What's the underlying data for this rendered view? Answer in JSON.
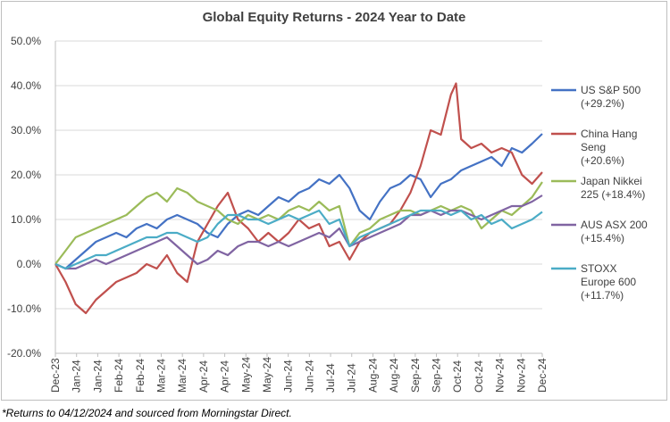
{
  "chart_data": {
    "type": "line",
    "title": "Global Equity Returns - 2024 Year to Date",
    "xlabel": "",
    "ylabel": "",
    "ylim": [
      -0.2,
      0.5
    ],
    "yticks": [
      "-20.0%",
      "-10.0%",
      "0.0%",
      "10.0%",
      "20.0%",
      "30.0%",
      "40.0%",
      "50.0%"
    ],
    "xticks": [
      "Dec-23",
      "Jan-24",
      "Jan-24",
      "Feb-24",
      "Feb-24",
      "Mar-24",
      "Mar-24",
      "Apr-24",
      "Apr-24",
      "May-24",
      "May-24",
      "Jun-24",
      "Jun-24",
      "Jul-24",
      "Jul-24",
      "Aug-24",
      "Aug-24",
      "Sep-24",
      "Sep-24",
      "Oct-24",
      "Oct-24",
      "Nov-24",
      "Nov-24",
      "Dec-24"
    ],
    "x_range": [
      0,
      48
    ],
    "grid": true,
    "legend_position": "right",
    "series": [
      {
        "name": "US S&P 500",
        "legend_lines": [
          "US S&P 500",
          "(+29.2%)"
        ],
        "color": "#4472c4",
        "x": [
          0,
          1,
          2,
          3,
          4,
          5,
          6,
          7,
          8,
          9,
          10,
          11,
          12,
          13,
          14,
          15,
          16,
          17,
          18,
          19,
          20,
          21,
          22,
          23,
          24,
          25,
          26,
          27,
          28,
          29,
          30,
          31,
          32,
          33,
          34,
          35,
          36,
          37,
          38,
          39,
          40,
          41,
          42,
          43,
          44,
          45,
          46,
          47,
          48
        ],
        "values": [
          0.0,
          -0.01,
          0.01,
          0.03,
          0.05,
          0.06,
          0.07,
          0.06,
          0.08,
          0.09,
          0.08,
          0.1,
          0.11,
          0.1,
          0.09,
          0.07,
          0.06,
          0.09,
          0.11,
          0.12,
          0.11,
          0.13,
          0.15,
          0.14,
          0.16,
          0.17,
          0.19,
          0.18,
          0.2,
          0.17,
          0.12,
          0.1,
          0.14,
          0.17,
          0.18,
          0.2,
          0.19,
          0.15,
          0.18,
          0.19,
          0.21,
          0.22,
          0.23,
          0.24,
          0.22,
          0.26,
          0.25,
          0.27,
          0.292
        ]
      },
      {
        "name": "China Hang Seng",
        "legend_lines": [
          "China Hang",
          "Seng",
          "(+20.6%)"
        ],
        "color": "#c0504d",
        "x": [
          0,
          1,
          2,
          3,
          4,
          5,
          6,
          7,
          8,
          9,
          10,
          11,
          12,
          13,
          14,
          15,
          16,
          17,
          18,
          19,
          20,
          21,
          22,
          23,
          24,
          25,
          26,
          27,
          28,
          29,
          30,
          31,
          32,
          33,
          34,
          35,
          36,
          37,
          38,
          39,
          39.5,
          40,
          41,
          42,
          43,
          44,
          45,
          46,
          47,
          48
        ],
        "values": [
          0.0,
          -0.04,
          -0.09,
          -0.11,
          -0.08,
          -0.06,
          -0.04,
          -0.03,
          -0.02,
          0.0,
          -0.01,
          0.02,
          -0.02,
          -0.04,
          0.05,
          0.09,
          0.13,
          0.16,
          0.1,
          0.08,
          0.05,
          0.07,
          0.05,
          0.07,
          0.1,
          0.08,
          0.09,
          0.04,
          0.05,
          0.01,
          0.05,
          0.07,
          0.08,
          0.09,
          0.12,
          0.16,
          0.22,
          0.3,
          0.29,
          0.38,
          0.405,
          0.28,
          0.26,
          0.27,
          0.25,
          0.26,
          0.25,
          0.2,
          0.18,
          0.206
        ]
      },
      {
        "name": "Japan Nikkei 225",
        "legend_lines": [
          "Japan Nikkei",
          "225 (+18.4%)"
        ],
        "color": "#9bbb59",
        "x": [
          0,
          1,
          2,
          3,
          4,
          5,
          6,
          7,
          8,
          9,
          10,
          11,
          12,
          13,
          14,
          15,
          16,
          17,
          18,
          19,
          20,
          21,
          22,
          23,
          24,
          25,
          26,
          27,
          28,
          29,
          30,
          31,
          32,
          33,
          34,
          35,
          36,
          37,
          38,
          39,
          40,
          41,
          42,
          43,
          44,
          45,
          46,
          47,
          48
        ],
        "values": [
          0.0,
          0.03,
          0.06,
          0.07,
          0.08,
          0.09,
          0.1,
          0.11,
          0.13,
          0.15,
          0.16,
          0.14,
          0.17,
          0.16,
          0.14,
          0.13,
          0.12,
          0.1,
          0.09,
          0.11,
          0.1,
          0.11,
          0.1,
          0.12,
          0.13,
          0.12,
          0.14,
          0.12,
          0.13,
          0.04,
          0.07,
          0.08,
          0.1,
          0.11,
          0.12,
          0.12,
          0.11,
          0.12,
          0.13,
          0.12,
          0.13,
          0.12,
          0.08,
          0.1,
          0.12,
          0.11,
          0.13,
          0.15,
          0.184
        ]
      },
      {
        "name": "AUS ASX 200",
        "legend_lines": [
          "AUS ASX 200",
          "(+15.4%)"
        ],
        "color": "#8064a2",
        "x": [
          0,
          1,
          2,
          3,
          4,
          5,
          6,
          7,
          8,
          9,
          10,
          11,
          12,
          13,
          14,
          15,
          16,
          17,
          18,
          19,
          20,
          21,
          22,
          23,
          24,
          25,
          26,
          27,
          28,
          29,
          30,
          31,
          32,
          33,
          34,
          35,
          36,
          37,
          38,
          39,
          40,
          41,
          42,
          43,
          44,
          45,
          46,
          47,
          48
        ],
        "values": [
          0.0,
          -0.01,
          -0.01,
          0.0,
          0.01,
          0.0,
          0.01,
          0.02,
          0.03,
          0.04,
          0.05,
          0.06,
          0.04,
          0.02,
          0.0,
          0.01,
          0.03,
          0.02,
          0.04,
          0.05,
          0.05,
          0.04,
          0.05,
          0.04,
          0.05,
          0.06,
          0.07,
          0.06,
          0.08,
          0.04,
          0.05,
          0.06,
          0.07,
          0.08,
          0.09,
          0.11,
          0.11,
          0.12,
          0.11,
          0.12,
          0.12,
          0.11,
          0.1,
          0.11,
          0.12,
          0.13,
          0.13,
          0.14,
          0.154
        ]
      },
      {
        "name": "STOXX Europe 600",
        "legend_lines": [
          "STOXX",
          "Europe 600",
          "(+11.7%)"
        ],
        "color": "#4bacc6",
        "x": [
          0,
          1,
          2,
          3,
          4,
          5,
          6,
          7,
          8,
          9,
          10,
          11,
          12,
          13,
          14,
          15,
          16,
          17,
          18,
          19,
          20,
          21,
          22,
          23,
          24,
          25,
          26,
          27,
          28,
          29,
          30,
          31,
          32,
          33,
          34,
          35,
          36,
          37,
          38,
          39,
          40,
          41,
          42,
          43,
          44,
          45,
          46,
          47,
          48
        ],
        "values": [
          0.0,
          -0.01,
          0.0,
          0.01,
          0.02,
          0.02,
          0.03,
          0.04,
          0.05,
          0.06,
          0.06,
          0.07,
          0.07,
          0.06,
          0.05,
          0.06,
          0.09,
          0.11,
          0.11,
          0.1,
          0.1,
          0.09,
          0.1,
          0.11,
          0.1,
          0.11,
          0.12,
          0.09,
          0.1,
          0.04,
          0.06,
          0.07,
          0.08,
          0.09,
          0.1,
          0.11,
          0.12,
          0.12,
          0.12,
          0.11,
          0.12,
          0.1,
          0.11,
          0.09,
          0.1,
          0.08,
          0.09,
          0.1,
          0.117
        ]
      }
    ]
  },
  "footnote": "*Returns to 04/12/2024 and sourced from Morningstar Direct."
}
